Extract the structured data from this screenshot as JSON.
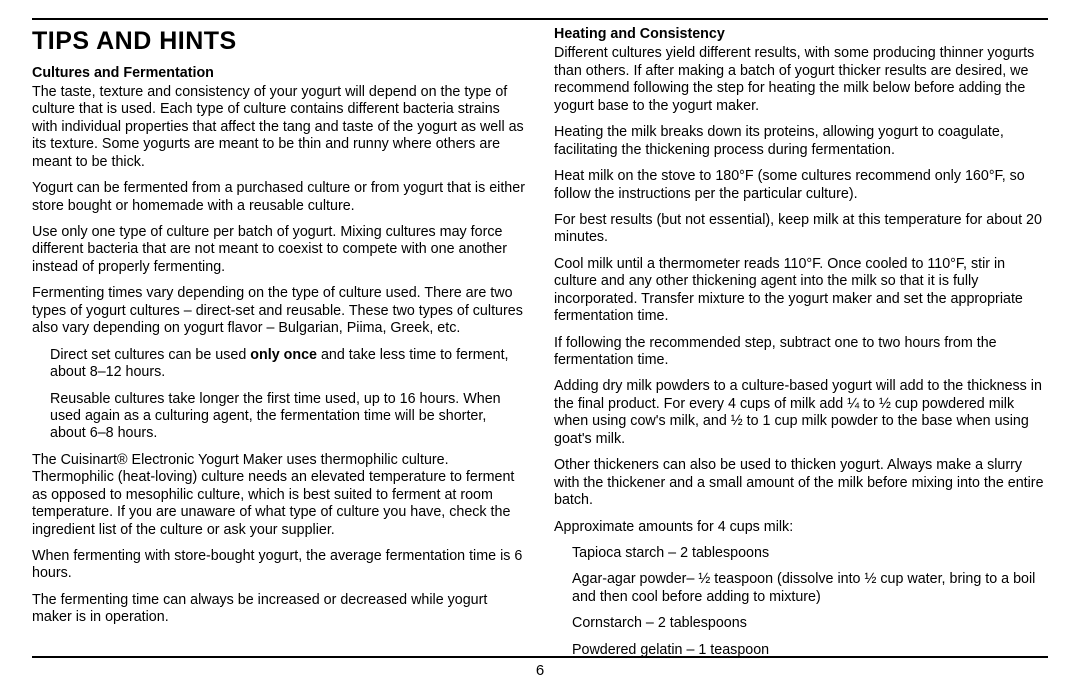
{
  "title": "Tips And Hints",
  "pageNumber": "6",
  "left": {
    "subhead": "Cultures and Fermentation",
    "p1": "The taste, texture and consistency of your yogurt will depend on the type of culture that is used. Each type of culture contains different bacteria strains with individual properties that affect the tang and taste of the yogurt as well as its texture. Some yogurts are meant to be thin and runny where others are meant to be thick.",
    "p2": "Yogurt can be fermented from a purchased culture or from yogurt that is either store bought or homemade with a reusable culture.",
    "p3": "Use only one type of culture per batch of yogurt. Mixing cultures may force different bacteria that are not meant to coexist to compete with one another instead of properly fermenting.",
    "p4": "Fermenting times vary depending on the type of culture used. There are two types of yogurt cultures – direct-set and reusable. These two types of cultures also vary depending on yogurt flavor – Bulgarian, Piima, Greek, etc.",
    "indent1a": "Direct set cultures can be used ",
    "indent1b": "only once",
    "indent1c": " and take less time to ferment, about 8–12 hours.",
    "indent2": "Reusable cultures take longer the first time used, up to 16 hours. When used again as a culturing agent, the fermentation time will be shorter, about 6–8 hours.",
    "p5": "The Cuisinart® Electronic Yogurt Maker uses thermophilic culture. Thermophilic (heat-loving) culture needs an elevated temperature to ferment as opposed to mesophilic culture, which is best suited to ferment at room temperature. If you are unaware of what type of culture you have, check the ingredient list of the culture or ask your supplier.",
    "p6": "When fermenting with store-bought yogurt, the average fermentation time is 6 hours.",
    "p7": "The fermenting time can always be increased or decreased while yogurt maker is in operation."
  },
  "right": {
    "subhead": "Heating and Consistency",
    "p1": "Different cultures yield different results, with some producing thinner yogurts than others. If after making a batch of yogurt thicker results are desired, we recommend following the step for heating the milk below before adding the yogurt base to the yogurt maker.",
    "p2": "Heating the milk breaks down its proteins, allowing yogurt to coagulate, facilitating the thickening process during fermentation.",
    "p3": "Heat milk on the stove to 180°F (some cultures recommend only 160°F, so follow the instructions per the particular culture).",
    "p4": "For best results (but not essential), keep milk at this temperature for about 20 minutes.",
    "p5": "Cool milk until a thermometer reads 110°F. Once cooled to 110°F, stir in culture and any other thickening agent into the milk so that it is fully incorporated. Transfer mixture to the yogurt maker and set the appropriate fermentation time.",
    "p6": "If following the recommended step, subtract one to two hours from the fermentation time.",
    "p7": "Adding dry milk powders to a culture-based yogurt will add to the thickness in the final product. For every 4 cups of milk add ¼ to ½ cup powdered milk when using cow's milk, and ½ to 1 cup milk powder to the base when using goat's milk.",
    "p8": "Other thickeners can also be used to thicken yogurt. Always make a slurry with the thickener and a small amount of the milk before mixing into the entire batch.",
    "p9": "Approximate amounts for 4 cups milk:",
    "li1": "Tapioca starch – 2 tablespoons",
    "li2": "Agar-agar powder– ½ teaspoon (dissolve into ½ cup water, bring to a boil and then cool before adding to mixture)",
    "li3": "Cornstarch – 2 tablespoons",
    "li4": "Powdered gelatin – 1 teaspoon"
  }
}
